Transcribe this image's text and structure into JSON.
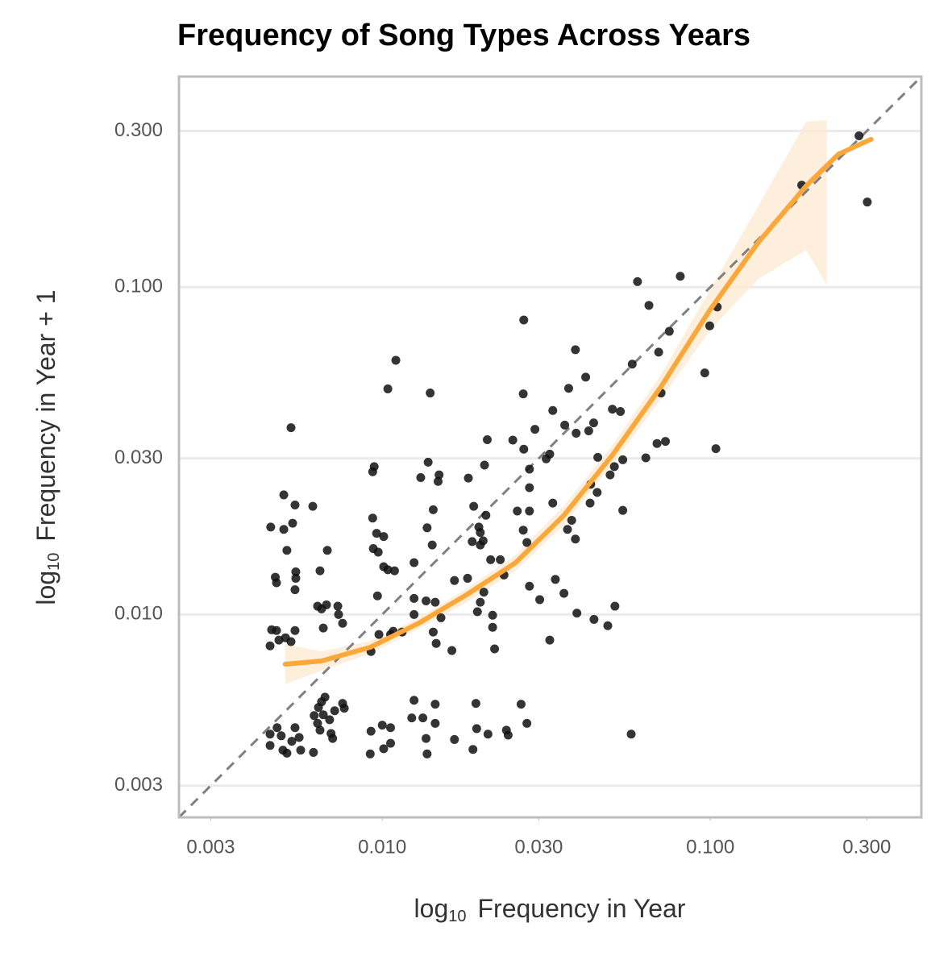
{
  "chart_data": {
    "type": "scatter",
    "title": "Frequency of Song Types Across Years",
    "x_label": [
      "log",
      "10",
      "Frequency in Year"
    ],
    "y_label": [
      "log",
      "10",
      "Frequency in Year + 1"
    ],
    "log_x": true,
    "log_y": true,
    "grid": true,
    "xlim": [
      0.0024,
      0.44
    ],
    "ylim": [
      0.0024,
      0.44
    ],
    "xticks": [
      {
        "value": 0.003,
        "label": "0.003"
      },
      {
        "value": 0.01,
        "label": "0.010"
      },
      {
        "value": 0.03,
        "label": "0.030"
      },
      {
        "value": 0.1,
        "label": "0.100"
      },
      {
        "value": 0.3,
        "label": "0.300"
      }
    ],
    "yticks": [
      {
        "value": 0.003,
        "label": "0.003"
      },
      {
        "value": 0.01,
        "label": "0.010"
      },
      {
        "value": 0.03,
        "label": "0.030"
      },
      {
        "value": 0.1,
        "label": "0.100"
      },
      {
        "value": 0.3,
        "label": "0.300"
      }
    ],
    "points": {
      "color": "#111111",
      "x": [
        0.284,
        0.301,
        0.19,
        0.081,
        0.06,
        0.065,
        0.105,
        0.0996,
        0.075,
        0.0696,
        0.0388,
        0.027,
        0.011,
        0.0104,
        0.014,
        0.0962,
        0.0417,
        0.0578,
        0.037,
        0.0269,
        0.0331,
        0.0708,
        0.0503,
        0.0532,
        0.0441,
        0.036,
        0.0426,
        0.039,
        0.0292,
        0.025,
        0.0209,
        0.027,
        0.00527,
        0.073,
        0.0688,
        0.104,
        0.0636,
        0.0454,
        0.0541,
        0.0324,
        0.0316,
        0.051,
        0.0281,
        0.0205,
        0.0138,
        0.00945,
        0.00935,
        0.0149,
        0.0131,
        0.0148,
        0.0183,
        0.0281,
        0.0432,
        0.0495,
        0.0452,
        0.00501,
        0.00542,
        0.00614,
        0.019,
        0.0143,
        0.0331,
        0.043,
        0.0258,
        0.0281,
        0.0541,
        0.0207,
        0.0378,
        0.00457,
        0.00501,
        0.00533,
        0.00935,
        0.0137,
        0.0197,
        0.0199,
        0.0269,
        0.0367,
        0.00961,
        0.0101,
        0.0188,
        0.0203,
        0.0388,
        0.0276,
        0.0199,
        0.00512,
        0.0068,
        0.00939,
        0.00972,
        0.0142,
        0.0214,
        0.0229,
        0.0125,
        0.0101,
        0.0104,
        0.0109,
        0.00646,
        0.00545,
        0.0235,
        0.00472,
        0.00545,
        0.0182,
        0.0166,
        0.0337,
        0.00476,
        0.0281,
        0.00542,
        0.00967,
        0.0204,
        0.0125,
        0.0136,
        0.0145,
        0.0199,
        0.0302,
        0.0358,
        0.0512,
        0.00635,
        0.00676,
        0.00732,
        0.00653,
        0.00736,
        0.0195,
        0.0125,
        0.0392,
        0.0217,
        0.0151,
        0.0442,
        0.0487,
        0.00757,
        0.0217,
        0.0046,
        0.00476,
        0.00542,
        0.00661,
        0.0115,
        0.0108,
        0.0143,
        0.00977,
        0.0106,
        0.0324,
        0.00484,
        0.00507,
        0.00527,
        0.00455,
        0.0146,
        0.022,
        0.0163,
        0.00924,
        0.00455,
        0.00455,
        0.00478,
        0.00492,
        0.00498,
        0.00512,
        0.0053,
        0.00542,
        0.00558,
        0.00564,
        0.00617,
        0.0062,
        0.00639,
        0.00669,
        0.00635,
        0.00661,
        0.00691,
        0.00646,
        0.00698,
        0.00716,
        0.00757,
        0.00766,
        0.00653,
        0.00706,
        0.00924,
        0.00919,
        0.01,
        0.0101,
        0.0106,
        0.0106,
        0.0125,
        0.0123,
        0.0133,
        0.0136,
        0.0137,
        0.0145,
        0.0145,
        0.0166,
        0.0189,
        0.0193,
        0.0194,
        0.021,
        0.0239,
        0.0242,
        0.0265,
        0.0276,
        0.0574
      ],
      "y": [
        0.29,
        0.182,
        0.205,
        0.108,
        0.104,
        0.088,
        0.087,
        0.0762,
        0.0733,
        0.0633,
        0.0644,
        0.0794,
        0.0598,
        0.0489,
        0.0475,
        0.0547,
        0.0531,
        0.0582,
        0.0491,
        0.0472,
        0.042,
        0.0475,
        0.0424,
        0.0417,
        0.0385,
        0.0379,
        0.0364,
        0.0358,
        0.0368,
        0.0341,
        0.0342,
        0.032,
        0.0372,
        0.0338,
        0.0333,
        0.0321,
        0.0301,
        0.0302,
        0.0297,
        0.0309,
        0.0299,
        0.0283,
        0.0278,
        0.0286,
        0.0292,
        0.0283,
        0.0273,
        0.0267,
        0.0262,
        0.0255,
        0.0261,
        0.0244,
        0.025,
        0.0267,
        0.0236,
        0.0232,
        0.0216,
        0.0214,
        0.0214,
        0.0209,
        0.0219,
        0.0219,
        0.0207,
        0.0207,
        0.0208,
        0.0201,
        0.0194,
        0.0185,
        0.0182,
        0.019,
        0.0197,
        0.0184,
        0.0185,
        0.0178,
        0.0181,
        0.0182,
        0.0177,
        0.0173,
        0.0167,
        0.0168,
        0.017,
        0.0166,
        0.0163,
        0.0157,
        0.0157,
        0.0159,
        0.0155,
        0.0163,
        0.0147,
        0.0147,
        0.0144,
        0.014,
        0.0137,
        0.0136,
        0.0136,
        0.0135,
        0.0132,
        0.013,
        0.0129,
        0.0129,
        0.0127,
        0.0128,
        0.0125,
        0.0122,
        0.0119,
        0.0114,
        0.0117,
        0.0112,
        0.011,
        0.0109,
        0.0109,
        0.0111,
        0.0116,
        0.0106,
        0.0106,
        0.0107,
        0.0106,
        0.0104,
        0.01,
        0.0102,
        0.01,
        0.0101,
        0.00995,
        0.00977,
        0.00966,
        0.00924,
        0.0094,
        0.00914,
        0.00898,
        0.00893,
        0.00893,
        0.00909,
        0.00884,
        0.00889,
        0.00884,
        0.00869,
        0.00869,
        0.00835,
        0.00835,
        0.00849,
        0.00826,
        0.00802,
        0.00816,
        0.00785,
        0.00776,
        0.00771,
        0.00431,
        0.00398,
        0.00451,
        0.00426,
        0.00385,
        0.00377,
        0.0041,
        0.00451,
        0.00421,
        0.00385,
        0.00379,
        0.00491,
        0.0052,
        0.00559,
        0.00465,
        0.00494,
        0.00477,
        0.00443,
        0.00433,
        0.00508,
        0.00535,
        0.00517,
        0.00541,
        0.00418,
        0.0044,
        0.00375,
        0.00459,
        0.00389,
        0.00451,
        0.00404,
        0.00547,
        0.00483,
        0.00483,
        0.00418,
        0.00375,
        0.00532,
        0.00465,
        0.00415,
        0.00387,
        0.00535,
        0.00448,
        0.00431,
        0.00443,
        0.00428,
        0.00532,
        0.00465,
        0.00431
      ]
    },
    "fit": {
      "color": "#fba73a",
      "x": [
        0.00506,
        0.00653,
        0.00918,
        0.0129,
        0.0181,
        0.0255,
        0.0358,
        0.0503,
        0.0708,
        0.0995,
        0.14,
        0.196,
        0.246,
        0.309
      ],
      "y": [
        0.00705,
        0.00721,
        0.00794,
        0.0094,
        0.0115,
        0.0144,
        0.0201,
        0.0307,
        0.0497,
        0.0849,
        0.137,
        0.204,
        0.255,
        0.283
      ]
    },
    "ribbon": {
      "color": "#fdebd3",
      "x": [
        0.00506,
        0.00653,
        0.00918,
        0.0129,
        0.0181,
        0.0255,
        0.0358,
        0.0503,
        0.0708,
        0.0995,
        0.14,
        0.196,
        0.226
      ],
      "lower": [
        0.00612,
        0.00674,
        0.00759,
        0.00904,
        0.0109,
        0.0136,
        0.0188,
        0.0287,
        0.0456,
        0.0737,
        0.106,
        0.13,
        0.102
      ],
      "upper": [
        0.00812,
        0.00771,
        0.0083,
        0.00977,
        0.012,
        0.0152,
        0.0215,
        0.0329,
        0.0541,
        0.0977,
        0.177,
        0.32,
        0.324
      ]
    }
  }
}
